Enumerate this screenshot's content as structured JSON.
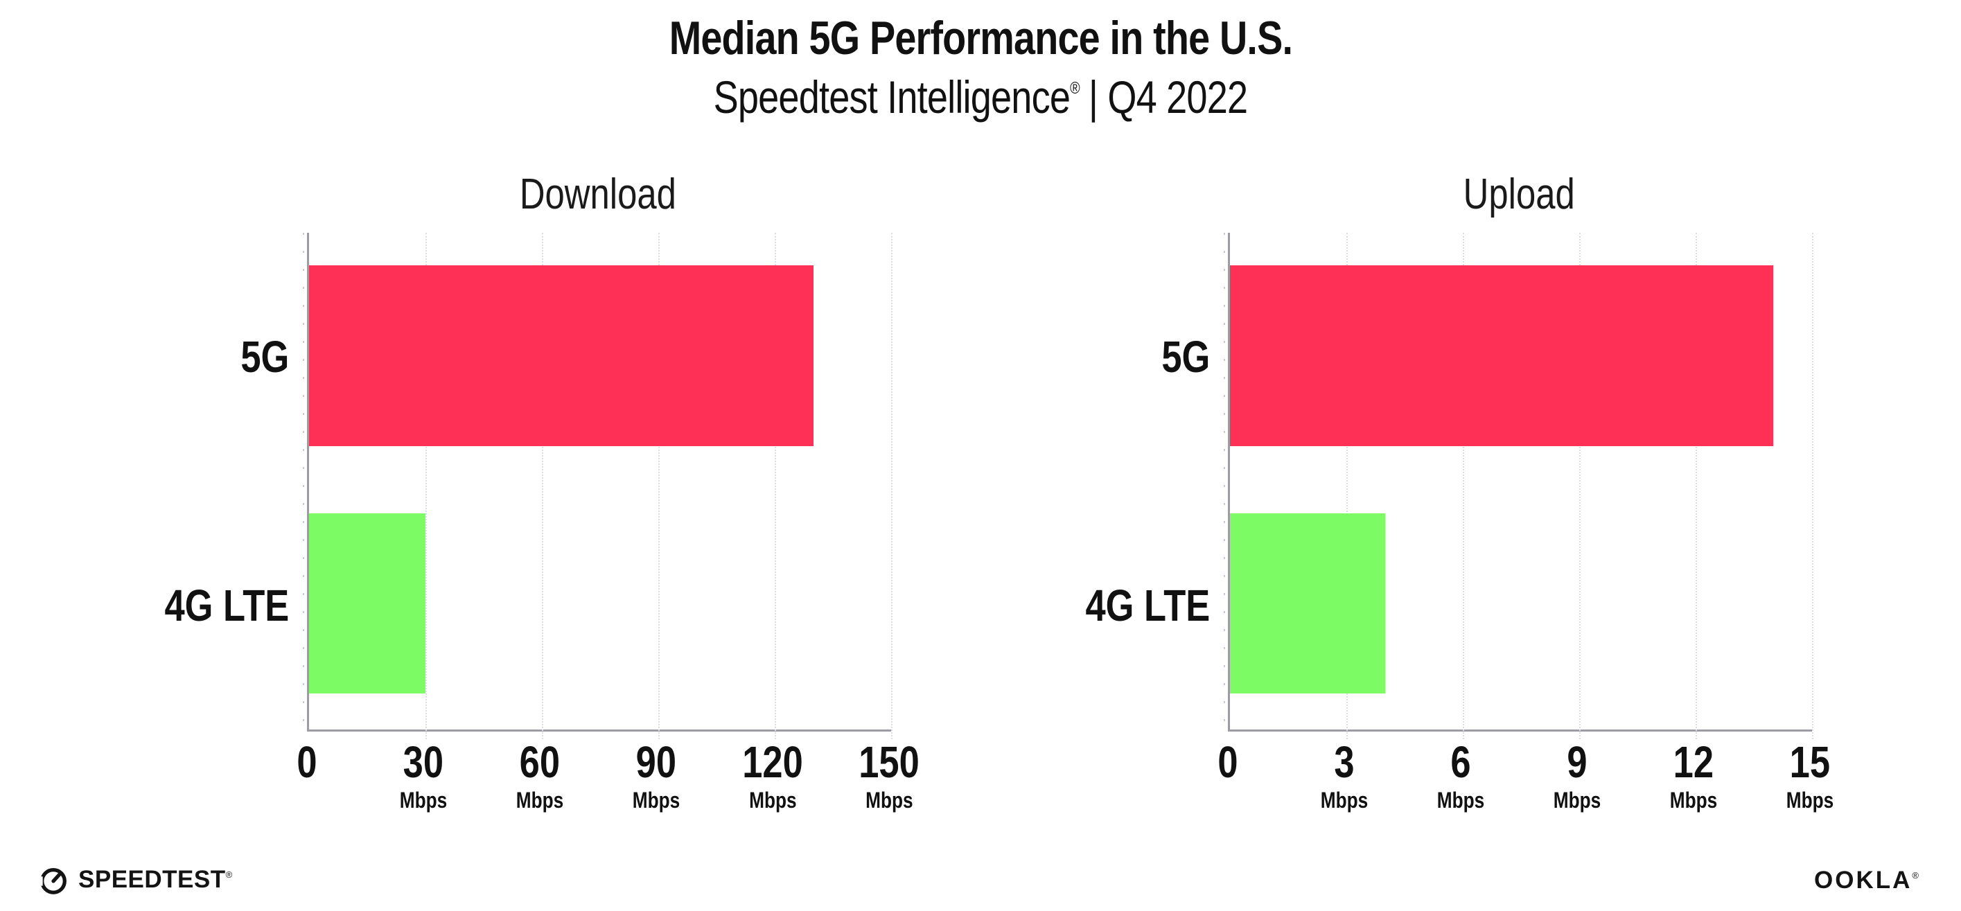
{
  "header": {
    "title": "Median 5G Performance in the U.S.",
    "subtitle_brand": "Speedtest Intelligence",
    "subtitle_reg": "®",
    "subtitle_period": "| Q4 2022"
  },
  "chart_data": [
    {
      "type": "bar",
      "orientation": "horizontal",
      "title": "Download",
      "categories": [
        "5G",
        "4G LTE"
      ],
      "values": [
        130,
        30
      ],
      "unit": "Mbps",
      "bar_colors": [
        "#FF3056",
        "#7DFB64"
      ],
      "xlim": [
        0,
        150
      ],
      "xticks": [
        0,
        30,
        60,
        90,
        120,
        150
      ],
      "grid": "vertical-dotted",
      "legend": "none"
    },
    {
      "type": "bar",
      "orientation": "horizontal",
      "title": "Upload",
      "categories": [
        "5G",
        "4G LTE"
      ],
      "values": [
        14,
        4
      ],
      "unit": "Mbps",
      "bar_colors": [
        "#FF3056",
        "#7DFB64"
      ],
      "xlim": [
        0,
        15
      ],
      "xticks": [
        0,
        3,
        6,
        9,
        12,
        15
      ],
      "grid": "vertical-dotted",
      "legend": "none"
    }
  ],
  "colors": {
    "bar_5g": "#FF3056",
    "bar_4g_lte": "#7DFB64",
    "axis": "#9c9ca2",
    "gridline": "#dcdce8",
    "text": "#111111"
  },
  "footer": {
    "speedtest_icon": "gauge-icon",
    "speedtest_logo_text": "SPEEDTEST",
    "speedtest_reg": "®",
    "ookla_logo_text": "OOKLA",
    "ookla_reg": "®"
  }
}
